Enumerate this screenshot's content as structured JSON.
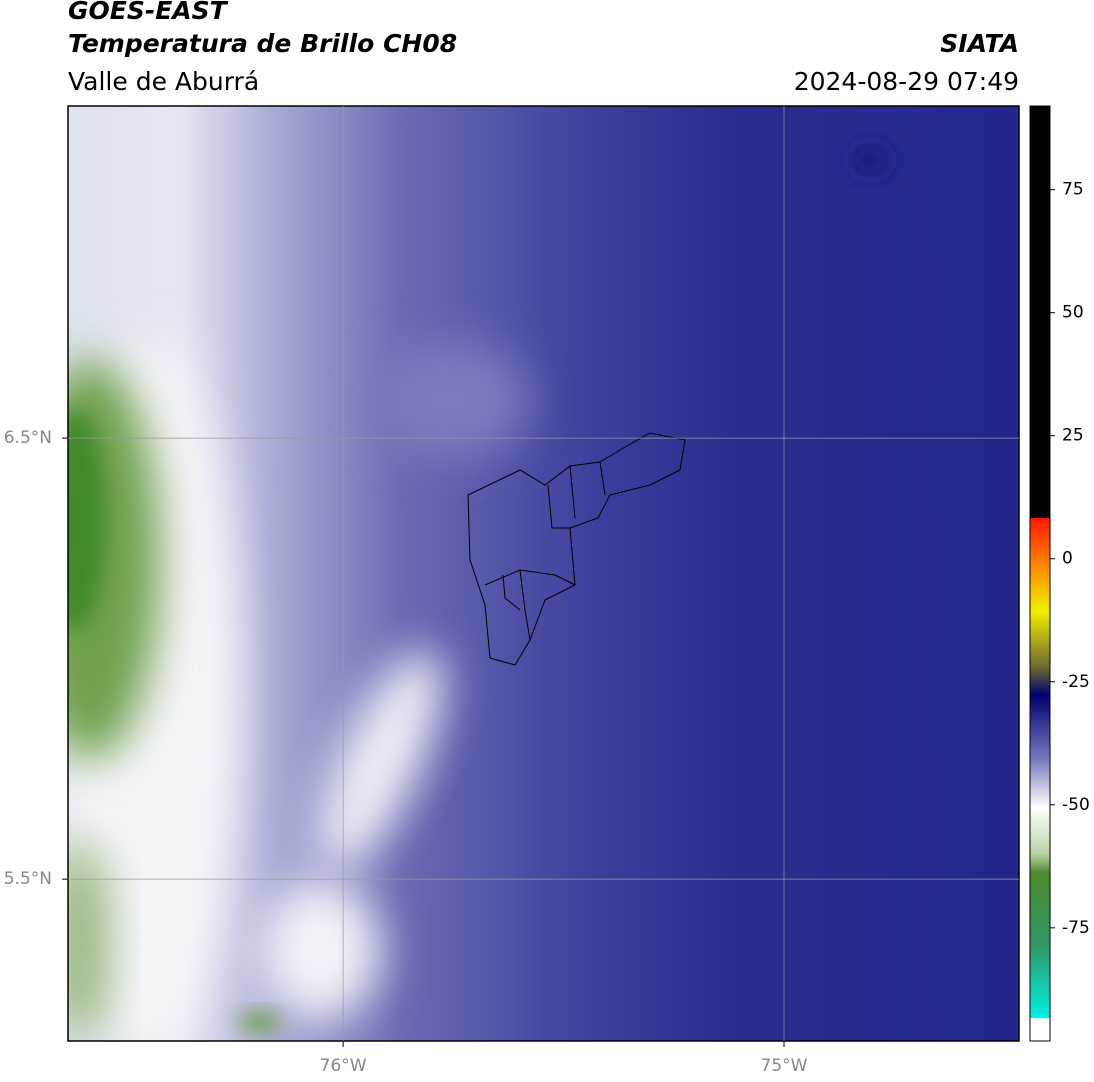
{
  "header": {
    "title": "GOES-EAST",
    "subtitle": "Temperatura de Brillo CH08",
    "region": "Valle de Aburrá",
    "source": "SIATA",
    "datetime": "2024-08-29 07:49"
  },
  "map": {
    "xlim": [
      -76.624,
      -74.467
    ],
    "ylim": [
      5.133,
      7.253
    ],
    "xticks": [
      {
        "value": -76,
        "label": "76°W"
      },
      {
        "value": -75,
        "label": "75°W"
      }
    ],
    "yticks": [
      {
        "value": 6.5,
        "label": "6.5°N"
      },
      {
        "value": 5.5,
        "label": "5.5°N"
      }
    ]
  },
  "colorbar": {
    "lim": [
      -98,
      92
    ],
    "ticks": [
      75,
      50,
      25,
      0,
      -25,
      -50,
      -75
    ]
  }
}
